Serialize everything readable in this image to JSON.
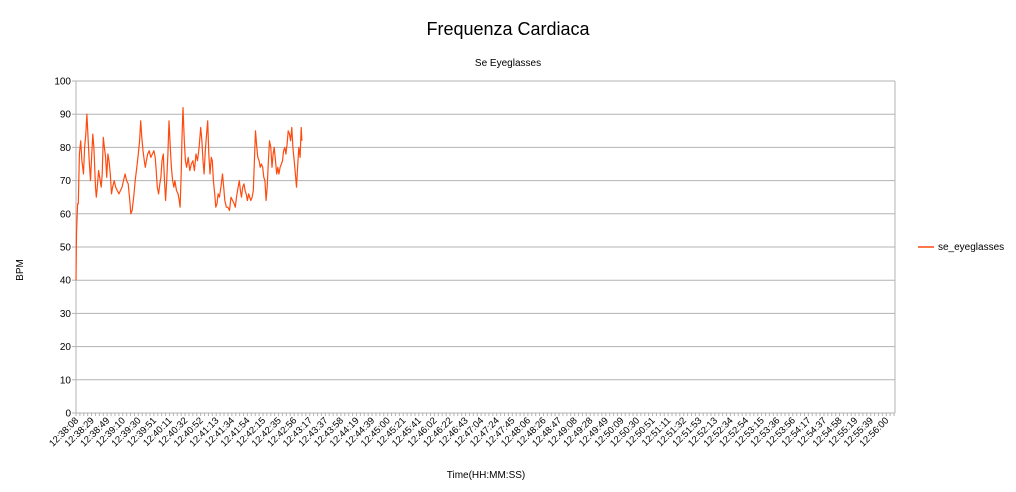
{
  "chart_data": {
    "type": "line",
    "title": "Frequenza Cardiaca",
    "subtitle": "Se Eyeglasses",
    "xlabel": "Time(HH:MM:SS)",
    "ylabel": "BPM",
    "ylim": [
      0,
      100
    ],
    "yticks": [
      0,
      10,
      20,
      30,
      40,
      50,
      60,
      70,
      80,
      90,
      100
    ],
    "grid": true,
    "legend_position": "right",
    "x_tick_labels": [
      "12:38:08",
      "12:38:29",
      "12:38:49",
      "12:39:10",
      "12:39:30",
      "12:39:51",
      "12:40:11",
      "12:40:32",
      "12:40:52",
      "12:41:13",
      "12:41:34",
      "12:41:54",
      "12:42:15",
      "12:42:35",
      "12:42:56",
      "12:43:17",
      "12:43:37",
      "12:43:58",
      "12:44:19",
      "12:44:39",
      "12:45:00",
      "12:45:21",
      "12:45:41",
      "12:46:02",
      "12:46:22",
      "12:46:43",
      "12:47:04",
      "12:47:24",
      "12:47:45",
      "12:48:06",
      "12:48:26",
      "12:48:47",
      "12:49:08",
      "12:49:28",
      "12:49:49",
      "12:50:09",
      "12:50:30",
      "12:50:51",
      "12:51:11",
      "12:51:32",
      "12:51:53",
      "12:52:13",
      "12:52:34",
      "12:52:54",
      "12:53:15",
      "12:53:36",
      "12:53:56",
      "12:54:17",
      "12:54:37",
      "12:54:58",
      "12:55:19",
      "12:55:39",
      "12:56:00"
    ],
    "series": [
      {
        "name": "se_eyeglasses",
        "color": "#ff4b0f",
        "points": [
          [
            0,
            40
          ],
          [
            0.03,
            54
          ],
          [
            0.1,
            63
          ],
          [
            0.15,
            63
          ],
          [
            0.22,
            78
          ],
          [
            0.3,
            82
          ],
          [
            0.38,
            76
          ],
          [
            0.48,
            72
          ],
          [
            0.55,
            80
          ],
          [
            0.63,
            84
          ],
          [
            0.7,
            90
          ],
          [
            0.78,
            82
          ],
          [
            0.85,
            76
          ],
          [
            0.93,
            70
          ],
          [
            1.0,
            77
          ],
          [
            1.08,
            84
          ],
          [
            1.15,
            80
          ],
          [
            1.2,
            74
          ],
          [
            1.25,
            68
          ],
          [
            1.3,
            65
          ],
          [
            1.35,
            67
          ],
          [
            1.45,
            73
          ],
          [
            1.55,
            70
          ],
          [
            1.62,
            68
          ],
          [
            1.68,
            72
          ],
          [
            1.75,
            83
          ],
          [
            1.82,
            80
          ],
          [
            1.9,
            77
          ],
          [
            1.97,
            71
          ],
          [
            2.05,
            78
          ],
          [
            2.12,
            76
          ],
          [
            2.2,
            72
          ],
          [
            2.28,
            66
          ],
          [
            2.35,
            68
          ],
          [
            2.45,
            70
          ],
          [
            2.55,
            68
          ],
          [
            2.65,
            67
          ],
          [
            2.75,
            66
          ],
          [
            2.85,
            67
          ],
          [
            2.95,
            68
          ],
          [
            3.05,
            70
          ],
          [
            3.15,
            72
          ],
          [
            3.25,
            70
          ],
          [
            3.35,
            69
          ],
          [
            3.45,
            64
          ],
          [
            3.52,
            60
          ],
          [
            3.6,
            61
          ],
          [
            3.7,
            65
          ],
          [
            3.8,
            70
          ],
          [
            3.9,
            74
          ],
          [
            4.0,
            78
          ],
          [
            4.08,
            82
          ],
          [
            4.15,
            88
          ],
          [
            4.22,
            83
          ],
          [
            4.3,
            79
          ],
          [
            4.38,
            76
          ],
          [
            4.45,
            74
          ],
          [
            4.52,
            76
          ],
          [
            4.6,
            78
          ],
          [
            4.7,
            79
          ],
          [
            4.8,
            77
          ],
          [
            4.9,
            78
          ],
          [
            5.0,
            79
          ],
          [
            5.08,
            77
          ],
          [
            5.15,
            73
          ],
          [
            5.22,
            68
          ],
          [
            5.3,
            66
          ],
          [
            5.38,
            69
          ],
          [
            5.45,
            71
          ],
          [
            5.52,
            76
          ],
          [
            5.6,
            78
          ],
          [
            5.68,
            70
          ],
          [
            5.75,
            64
          ],
          [
            5.82,
            70
          ],
          [
            5.9,
            78
          ],
          [
            5.97,
            88
          ],
          [
            6.05,
            80
          ],
          [
            6.12,
            74
          ],
          [
            6.2,
            70
          ],
          [
            6.28,
            68
          ],
          [
            6.35,
            70
          ],
          [
            6.45,
            67
          ],
          [
            6.55,
            66
          ],
          [
            6.62,
            64
          ],
          [
            6.68,
            62
          ],
          [
            6.75,
            72
          ],
          [
            6.8,
            83
          ],
          [
            6.87,
            92
          ],
          [
            6.95,
            82
          ],
          [
            7.02,
            76
          ],
          [
            7.1,
            74
          ],
          [
            7.2,
            77
          ],
          [
            7.3,
            73
          ],
          [
            7.4,
            75
          ],
          [
            7.5,
            76
          ],
          [
            7.6,
            73
          ],
          [
            7.7,
            78
          ],
          [
            7.8,
            76
          ],
          [
            7.9,
            80
          ],
          [
            8.0,
            86
          ],
          [
            8.08,
            82
          ],
          [
            8.15,
            76
          ],
          [
            8.22,
            72
          ],
          [
            8.3,
            79
          ],
          [
            8.38,
            84
          ],
          [
            8.45,
            88
          ],
          [
            8.52,
            78
          ],
          [
            8.6,
            72
          ],
          [
            8.68,
            77
          ],
          [
            8.75,
            76
          ],
          [
            8.82,
            70
          ],
          [
            8.9,
            66
          ],
          [
            8.97,
            62
          ],
          [
            9.05,
            63
          ],
          [
            9.12,
            66
          ],
          [
            9.2,
            65
          ],
          [
            9.3,
            68
          ],
          [
            9.4,
            72
          ],
          [
            9.48,
            68
          ],
          [
            9.55,
            64
          ],
          [
            9.65,
            62
          ],
          [
            9.75,
            62
          ],
          [
            9.85,
            61
          ],
          [
            9.95,
            65
          ],
          [
            10.05,
            64
          ],
          [
            10.15,
            63
          ],
          [
            10.22,
            62
          ],
          [
            10.3,
            65
          ],
          [
            10.4,
            68
          ],
          [
            10.48,
            70
          ],
          [
            10.55,
            67
          ],
          [
            10.62,
            65
          ],
          [
            10.7,
            68
          ],
          [
            10.78,
            69
          ],
          [
            10.85,
            67
          ],
          [
            10.92,
            66
          ],
          [
            11.0,
            64
          ],
          [
            11.08,
            66
          ],
          [
            11.15,
            65
          ],
          [
            11.22,
            64
          ],
          [
            11.3,
            65
          ],
          [
            11.38,
            67
          ],
          [
            11.45,
            76
          ],
          [
            11.52,
            85
          ],
          [
            11.6,
            80
          ],
          [
            11.67,
            77
          ],
          [
            11.75,
            76
          ],
          [
            11.82,
            74
          ],
          [
            11.9,
            75
          ],
          [
            11.98,
            74
          ],
          [
            12.05,
            71
          ],
          [
            12.12,
            70
          ],
          [
            12.2,
            64
          ],
          [
            12.27,
            68
          ],
          [
            12.35,
            76
          ],
          [
            12.42,
            82
          ],
          [
            12.5,
            80
          ],
          [
            12.58,
            74
          ],
          [
            12.65,
            78
          ],
          [
            12.72,
            80
          ],
          [
            12.8,
            76
          ],
          [
            12.88,
            72
          ],
          [
            12.95,
            74
          ],
          [
            13.02,
            72
          ],
          [
            13.1,
            74
          ],
          [
            13.18,
            75
          ],
          [
            13.25,
            76
          ],
          [
            13.32,
            79
          ],
          [
            13.4,
            80
          ],
          [
            13.47,
            78
          ],
          [
            13.55,
            81
          ],
          [
            13.62,
            85
          ],
          [
            13.7,
            84
          ],
          [
            13.77,
            82
          ],
          [
            13.85,
            86
          ],
          [
            13.92,
            80
          ],
          [
            14.0,
            76
          ],
          [
            14.08,
            72
          ],
          [
            14.15,
            68
          ],
          [
            14.22,
            74
          ],
          [
            14.3,
            80
          ],
          [
            14.38,
            77
          ],
          [
            14.45,
            86
          ],
          [
            14.5,
            82
          ]
        ]
      }
    ]
  }
}
